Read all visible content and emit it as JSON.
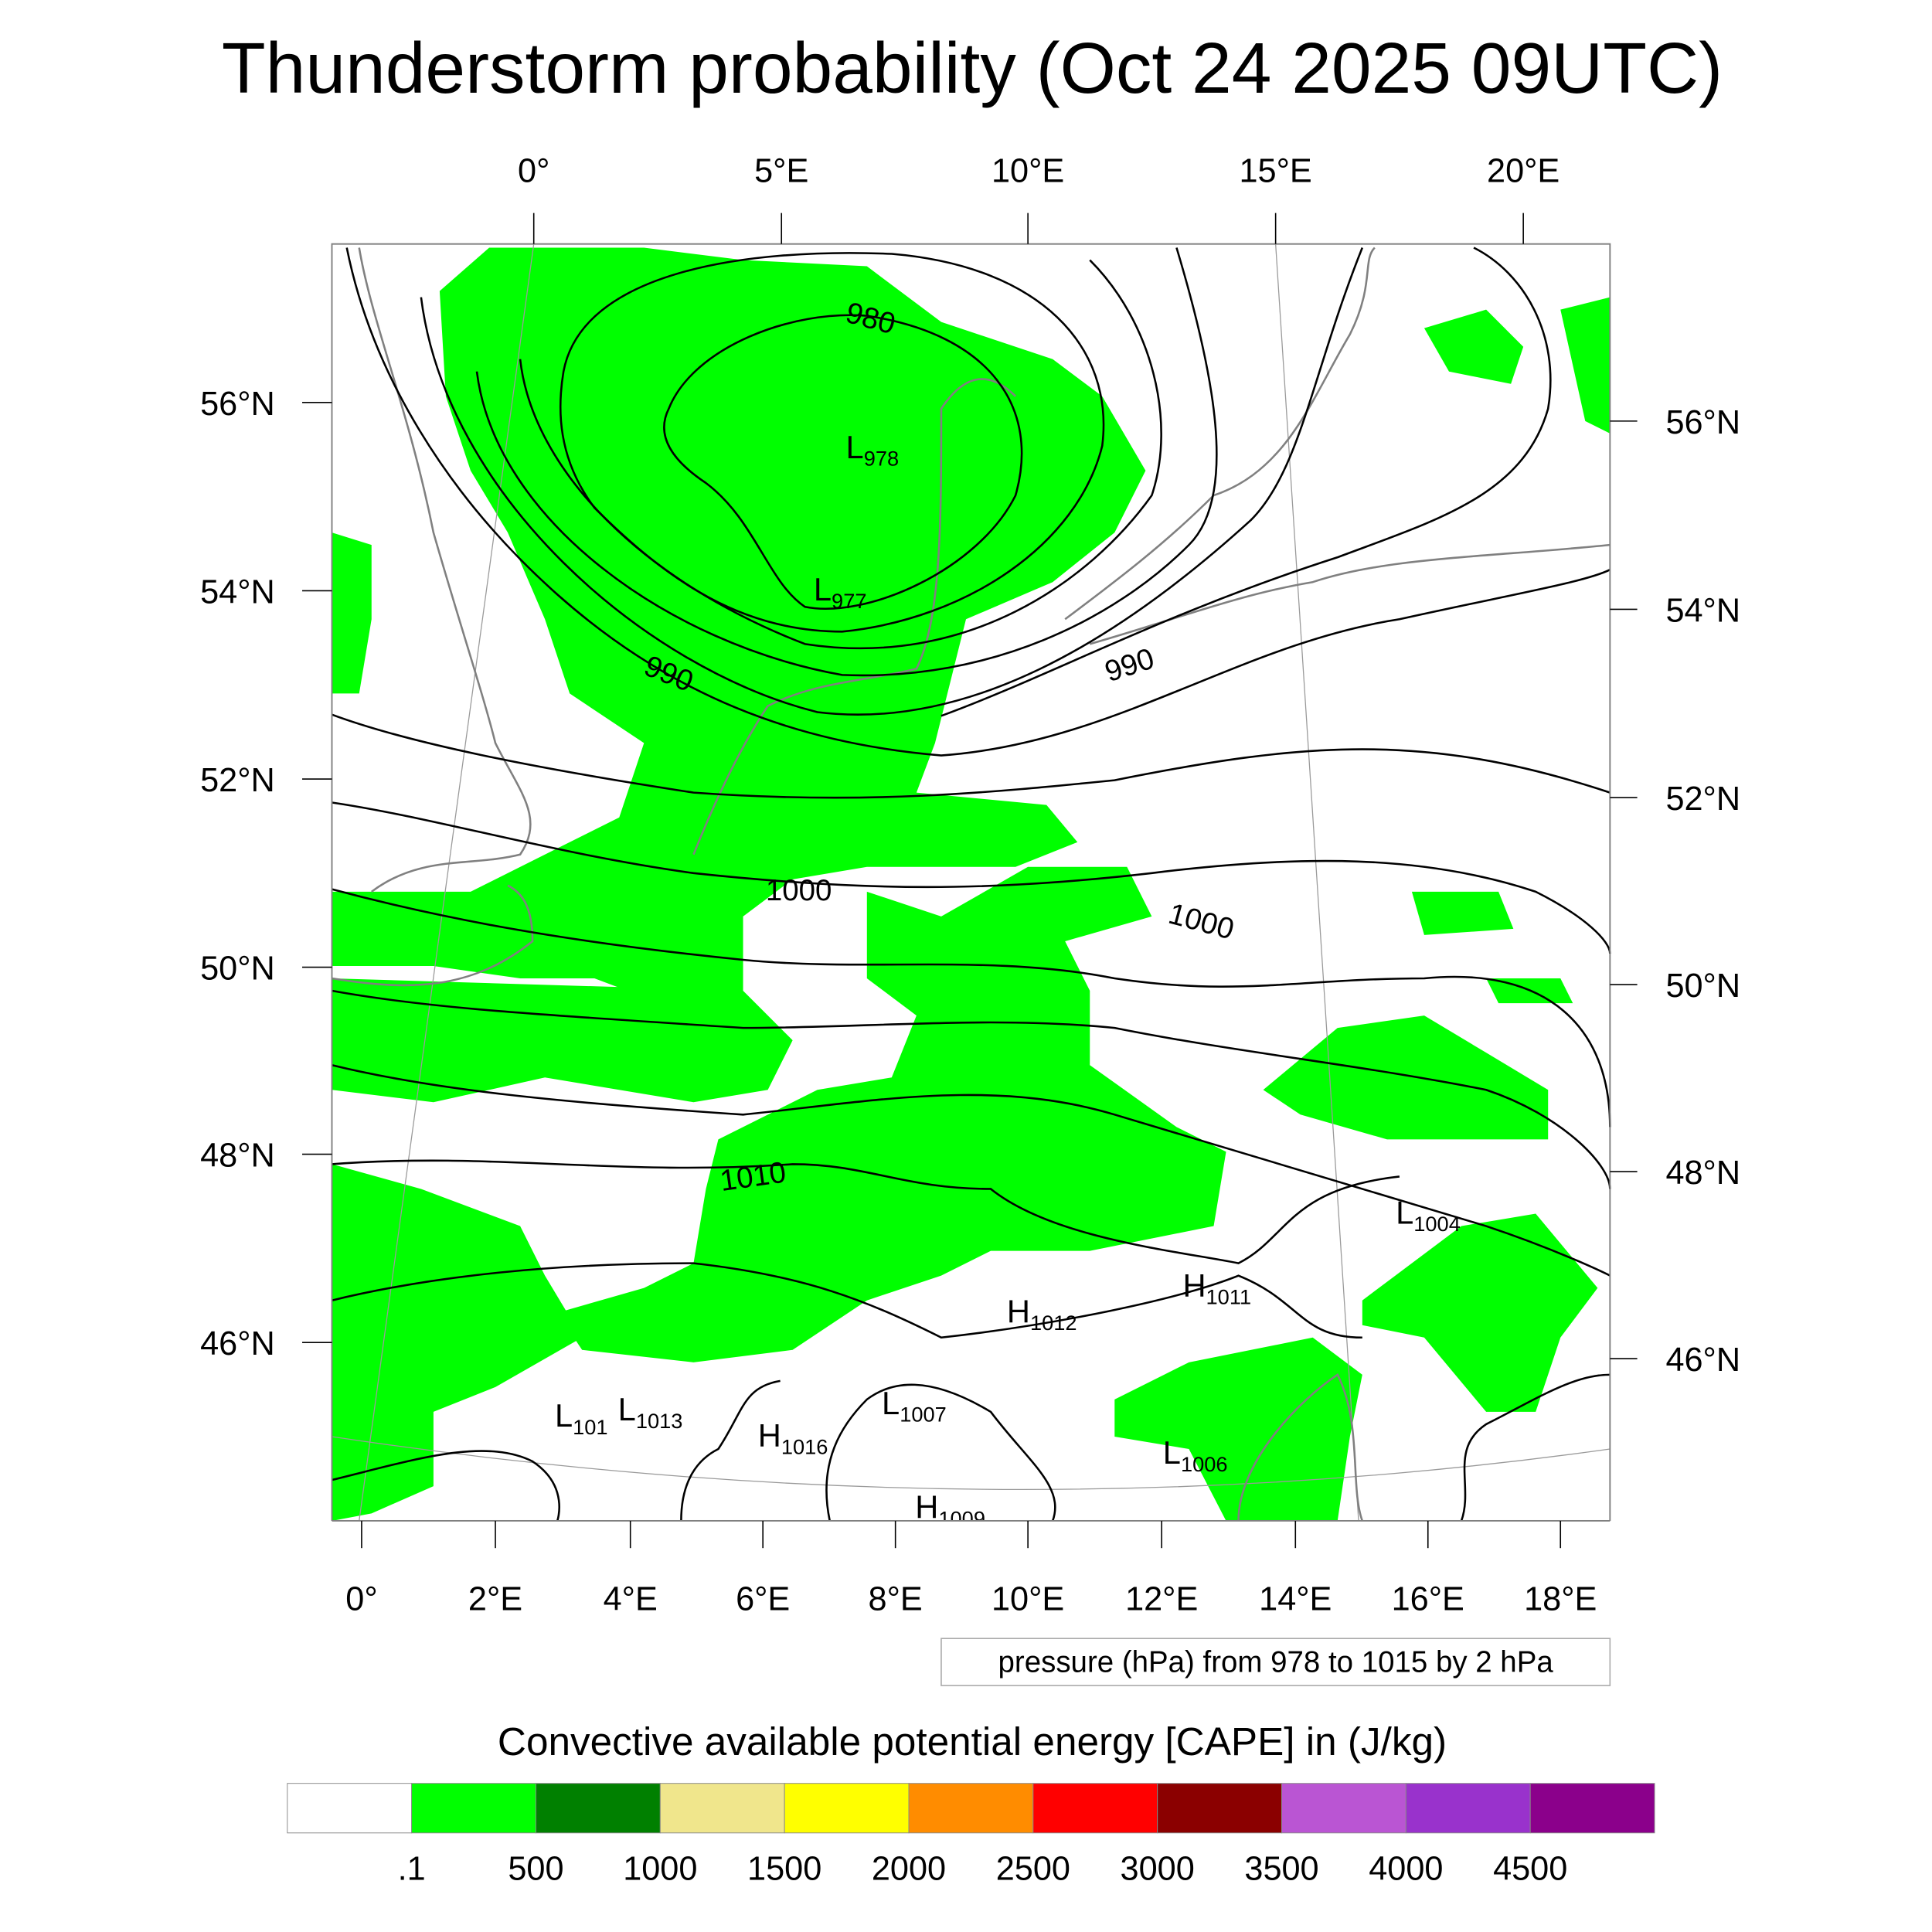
{
  "title": "Thunderstorm probability (Oct 24 2025 09UTC)",
  "top_axis": [
    "0°",
    "5°E",
    "10°E",
    "15°E",
    "20°E"
  ],
  "bottom_axis": [
    "0°",
    "2°E",
    "4°E",
    "6°E",
    "8°E",
    "10°E",
    "12°E",
    "14°E",
    "16°E",
    "18°E"
  ],
  "left_axis": [
    "56°N",
    "54°N",
    "52°N",
    "50°N",
    "48°N",
    "46°N"
  ],
  "right_axis": [
    "56°N",
    "54°N",
    "52°N",
    "50°N",
    "48°N",
    "46°N"
  ],
  "contour_labels": [
    "980",
    "990",
    "990",
    "1000",
    "1000",
    "1010"
  ],
  "pressure_centers": [
    {
      "letter": "L",
      "value": "978"
    },
    {
      "letter": "L",
      "value": "977"
    },
    {
      "letter": "L",
      "value": "1004"
    },
    {
      "letter": "H",
      "value": "1011"
    },
    {
      "letter": "H",
      "value": "1012"
    },
    {
      "letter": "L",
      "value": "101"
    },
    {
      "letter": "L",
      "value": "1013"
    },
    {
      "letter": "H",
      "value": "1016"
    },
    {
      "letter": "L",
      "value": "1007"
    },
    {
      "letter": "H",
      "value": "1009"
    },
    {
      "letter": "L",
      "value": "1006"
    }
  ],
  "contour_info": "pressure (hPa) from 978 to 1015 by 2 hPa",
  "colorbar": {
    "title": "Convective available potential energy [CAPE] in (J/kg)",
    "colors": [
      "#ffffff",
      "#00ff00",
      "#008000",
      "#f0e68c",
      "#ffff00",
      "#ff8c00",
      "#ff0000",
      "#8b0000",
      "#ba55d3",
      "#9932cc",
      "#8b008b"
    ],
    "labels": [
      ".1",
      "500",
      "1000",
      "1500",
      "2000",
      "2500",
      "3000",
      "3500",
      "4000",
      "4500"
    ]
  }
}
